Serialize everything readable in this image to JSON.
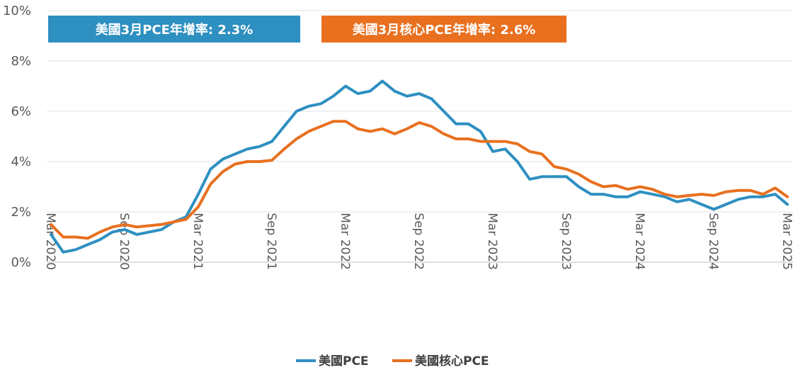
{
  "chart_data": {
    "type": "line",
    "title": "",
    "xlabel": "",
    "ylabel": "",
    "ylim": [
      0,
      10
    ],
    "y_ticks": [
      "0%",
      "2%",
      "4%",
      "6%",
      "8%",
      "10%"
    ],
    "x_ticks": [
      "Mar 2020",
      "Sep 2020",
      "Mar 2021",
      "Sep 2021",
      "Mar 2022",
      "Sep 2022",
      "Mar 2023",
      "Sep 2023",
      "Mar 2024",
      "Sep 2024",
      "Mar 2025"
    ],
    "grid": "horizontal",
    "legend_position": "bottom",
    "x": [
      "2020-03",
      "2020-04",
      "2020-05",
      "2020-06",
      "2020-07",
      "2020-08",
      "2020-09",
      "2020-10",
      "2020-11",
      "2020-12",
      "2021-01",
      "2021-02",
      "2021-03",
      "2021-04",
      "2021-05",
      "2021-06",
      "2021-07",
      "2021-08",
      "2021-09",
      "2021-10",
      "2021-11",
      "2021-12",
      "2022-01",
      "2022-02",
      "2022-03",
      "2022-04",
      "2022-05",
      "2022-06",
      "2022-07",
      "2022-08",
      "2022-09",
      "2022-10",
      "2022-11",
      "2022-12",
      "2023-01",
      "2023-02",
      "2023-03",
      "2023-04",
      "2023-05",
      "2023-06",
      "2023-07",
      "2023-08",
      "2023-09",
      "2023-10",
      "2023-11",
      "2023-12",
      "2024-01",
      "2024-02",
      "2024-03",
      "2024-04",
      "2024-05",
      "2024-06",
      "2024-07",
      "2024-08",
      "2024-09",
      "2024-10",
      "2024-11",
      "2024-12",
      "2025-01",
      "2025-02",
      "2025-03"
    ],
    "series": [
      {
        "name": "美國PCE",
        "color": "#2e8fc1",
        "values": [
          1.1,
          0.4,
          0.5,
          0.7,
          0.9,
          1.2,
          1.3,
          1.1,
          1.2,
          1.3,
          1.6,
          1.8,
          2.7,
          3.7,
          4.1,
          4.3,
          4.5,
          4.6,
          4.8,
          5.4,
          6.0,
          6.2,
          6.3,
          6.6,
          7.0,
          6.7,
          6.8,
          7.2,
          6.8,
          6.6,
          6.7,
          6.5,
          6.0,
          5.5,
          5.5,
          5.2,
          4.4,
          4.5,
          4.0,
          3.3,
          3.4,
          3.4,
          3.4,
          3.0,
          2.7,
          2.7,
          2.6,
          2.6,
          2.8,
          2.7,
          2.6,
          2.4,
          2.5,
          2.3,
          2.1,
          2.3,
          2.5,
          2.6,
          2.6,
          2.7,
          2.3
        ]
      },
      {
        "name": "美國核心PCE",
        "color": "#e8701f",
        "values": [
          1.5,
          1.0,
          1.0,
          0.95,
          1.2,
          1.4,
          1.5,
          1.4,
          1.45,
          1.5,
          1.6,
          1.7,
          2.2,
          3.1,
          3.6,
          3.9,
          4.0,
          4.0,
          4.05,
          4.5,
          4.9,
          5.2,
          5.4,
          5.6,
          5.6,
          5.3,
          5.2,
          5.3,
          5.1,
          5.3,
          5.55,
          5.4,
          5.1,
          4.9,
          4.9,
          4.8,
          4.8,
          4.8,
          4.7,
          4.4,
          4.3,
          3.8,
          3.7,
          3.5,
          3.2,
          3.0,
          3.05,
          2.9,
          3.0,
          2.9,
          2.7,
          2.6,
          2.65,
          2.7,
          2.65,
          2.8,
          2.85,
          2.85,
          2.7,
          2.95,
          2.6
        ]
      }
    ]
  },
  "annotations": [
    {
      "text": "美國3月PCE年增率: 2.3%",
      "color": "#2e8fc1"
    },
    {
      "text": "美國3月核心PCE年增率: 2.6%",
      "color": "#e8701f"
    }
  ]
}
